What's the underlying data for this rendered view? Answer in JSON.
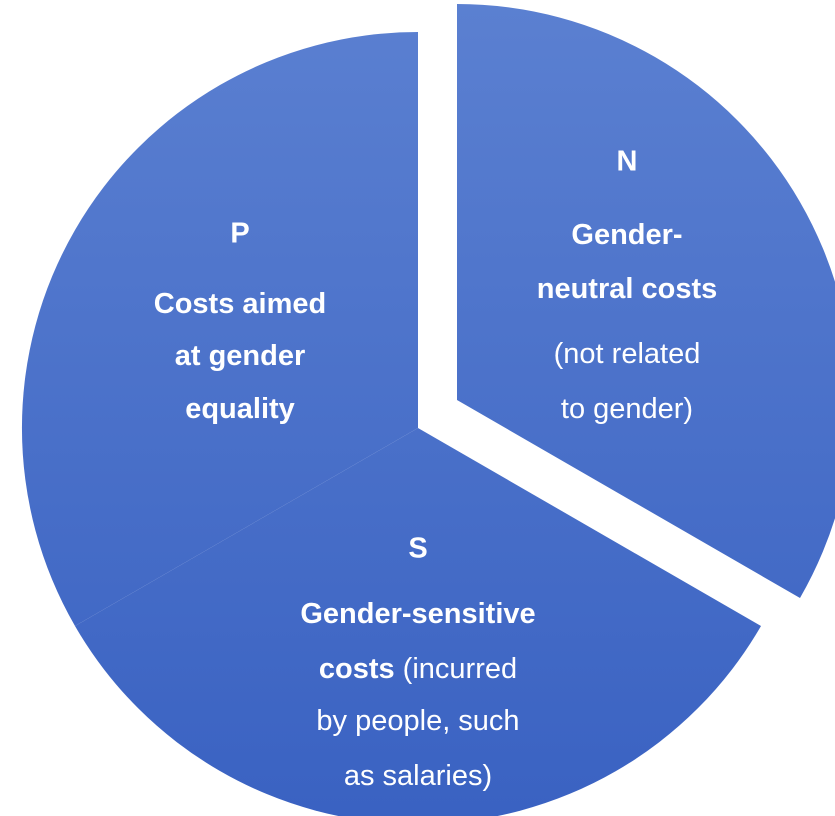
{
  "segments": [
    {
      "code": "P",
      "lines": [
        [
          {
            "text": "Costs aimed",
            "bold": true
          }
        ],
        [
          {
            "text": "at gender",
            "bold": true
          }
        ],
        [
          {
            "text": "equality",
            "bold": true
          }
        ]
      ]
    },
    {
      "code": "N",
      "lines": [
        [
          {
            "text": "Gender-",
            "bold": true
          }
        ],
        [
          {
            "text": "neutral costs",
            "bold": true
          }
        ],
        [
          {
            "text": "(not related",
            "bold": false
          }
        ],
        [
          {
            "text": "to gender)",
            "bold": false
          }
        ]
      ]
    },
    {
      "code": "S",
      "lines": [
        [
          {
            "text": "Gender-sensitive",
            "bold": true
          }
        ],
        [
          {
            "text": "costs",
            "bold": true
          },
          {
            "text": " (incurred",
            "bold": false
          }
        ],
        [
          {
            "text": "by people, such",
            "bold": false
          }
        ],
        [
          {
            "text": "as salaries)",
            "bold": false
          }
        ]
      ]
    }
  ]
}
